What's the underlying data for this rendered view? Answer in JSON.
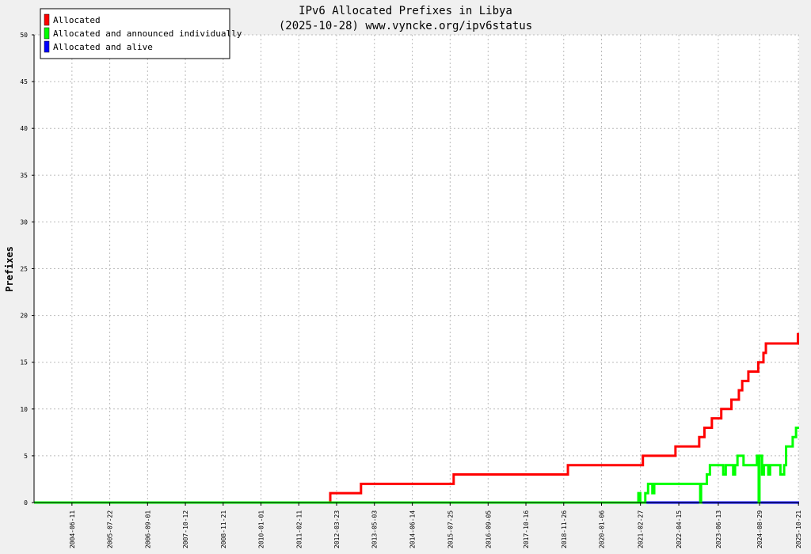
{
  "chart_data": {
    "type": "line",
    "title": "IPv6 Allocated Prefixes in Libya",
    "subtitle": "(2025-10-28) www.vyncke.org/ipv6status",
    "ylabel": "Prefixes",
    "xlabel": "",
    "ylim": [
      0,
      50
    ],
    "yticks": [
      0,
      5,
      10,
      15,
      20,
      25,
      30,
      35,
      40,
      45,
      50
    ],
    "xlim": [
      "2003-05-01",
      "2025-10-28"
    ],
    "xticks": [
      "2004-06-11",
      "2005-07-22",
      "2006-09-01",
      "2007-10-12",
      "2008-11-21",
      "2010-01-01",
      "2011-02-11",
      "2012-03-23",
      "2013-05-03",
      "2014-06-14",
      "2015-07-25",
      "2016-09-05",
      "2017-10-16",
      "2018-11-26",
      "2020-01-06",
      "2021-02-27",
      "2022-04-15",
      "2023-06-13",
      "2024-08-29",
      "2025-10-21"
    ],
    "grid": true,
    "legend_position": "top-left",
    "series": [
      {
        "name": "Allocated",
        "color": "#ff0000",
        "points": [
          [
            "2003-05-01",
            0
          ],
          [
            "2012-01-15",
            0
          ],
          [
            "2012-01-15",
            1
          ],
          [
            "2012-12-10",
            1
          ],
          [
            "2012-12-10",
            2
          ],
          [
            "2015-09-01",
            2
          ],
          [
            "2015-09-01",
            3
          ],
          [
            "2019-01-10",
            3
          ],
          [
            "2019-01-10",
            4
          ],
          [
            "2021-03-25",
            4
          ],
          [
            "2021-03-25",
            5
          ],
          [
            "2022-03-10",
            5
          ],
          [
            "2022-03-10",
            6
          ],
          [
            "2022-11-20",
            6
          ],
          [
            "2022-11-20",
            7
          ],
          [
            "2023-01-15",
            7
          ],
          [
            "2023-01-15",
            8
          ],
          [
            "2023-04-05",
            8
          ],
          [
            "2023-04-05",
            9
          ],
          [
            "2023-07-15",
            9
          ],
          [
            "2023-07-15",
            10
          ],
          [
            "2023-11-01",
            10
          ],
          [
            "2023-11-01",
            11
          ],
          [
            "2024-01-20",
            11
          ],
          [
            "2024-01-20",
            12
          ],
          [
            "2024-02-25",
            12
          ],
          [
            "2024-02-25",
            13
          ],
          [
            "2024-05-01",
            13
          ],
          [
            "2024-05-01",
            14
          ],
          [
            "2024-08-15",
            14
          ],
          [
            "2024-08-15",
            15
          ],
          [
            "2024-10-10",
            15
          ],
          [
            "2024-10-10",
            16
          ],
          [
            "2024-11-05",
            16
          ],
          [
            "2024-11-05",
            17
          ],
          [
            "2025-10-15",
            17
          ],
          [
            "2025-10-15",
            18
          ],
          [
            "2025-10-28",
            18
          ]
        ]
      },
      {
        "name": "Allocated and announced individually",
        "color": "#00ff00",
        "points": [
          [
            "2003-05-01",
            0
          ],
          [
            "2021-02-05",
            0
          ],
          [
            "2021-02-05",
            1
          ],
          [
            "2021-02-25",
            1
          ],
          [
            "2021-02-25",
            0
          ],
          [
            "2021-04-20",
            0
          ],
          [
            "2021-04-20",
            1
          ],
          [
            "2021-05-20",
            1
          ],
          [
            "2021-05-20",
            2
          ],
          [
            "2021-07-05",
            2
          ],
          [
            "2021-07-05",
            1
          ],
          [
            "2021-07-25",
            1
          ],
          [
            "2021-07-25",
            2
          ],
          [
            "2022-12-01",
            2
          ],
          [
            "2022-12-01",
            0
          ],
          [
            "2022-12-10",
            0
          ],
          [
            "2022-12-10",
            2
          ],
          [
            "2023-02-10",
            2
          ],
          [
            "2023-02-10",
            3
          ],
          [
            "2023-03-15",
            3
          ],
          [
            "2023-03-15",
            4
          ],
          [
            "2023-08-05",
            4
          ],
          [
            "2023-08-05",
            3
          ],
          [
            "2023-09-01",
            3
          ],
          [
            "2023-09-01",
            4
          ],
          [
            "2023-11-20",
            4
          ],
          [
            "2023-11-20",
            3
          ],
          [
            "2023-12-10",
            3
          ],
          [
            "2023-12-10",
            4
          ],
          [
            "2024-01-05",
            4
          ],
          [
            "2024-01-05",
            5
          ],
          [
            "2024-03-10",
            5
          ],
          [
            "2024-03-10",
            4
          ],
          [
            "2024-08-01",
            4
          ],
          [
            "2024-08-01",
            5
          ],
          [
            "2024-08-20",
            5
          ],
          [
            "2024-08-20",
            0
          ],
          [
            "2024-08-28",
            0
          ],
          [
            "2024-08-28",
            5
          ],
          [
            "2024-09-25",
            5
          ],
          [
            "2024-09-25",
            3
          ],
          [
            "2024-10-15",
            3
          ],
          [
            "2024-10-15",
            4
          ],
          [
            "2024-12-01",
            4
          ],
          [
            "2024-12-01",
            3
          ],
          [
            "2024-12-20",
            3
          ],
          [
            "2024-12-20",
            4
          ],
          [
            "2025-04-10",
            4
          ],
          [
            "2025-04-10",
            3
          ],
          [
            "2025-05-20",
            3
          ],
          [
            "2025-05-20",
            4
          ],
          [
            "2025-06-10",
            4
          ],
          [
            "2025-06-10",
            6
          ],
          [
            "2025-08-20",
            6
          ],
          [
            "2025-08-20",
            7
          ],
          [
            "2025-09-25",
            7
          ],
          [
            "2025-09-25",
            8
          ],
          [
            "2025-10-28",
            8
          ]
        ]
      },
      {
        "name": "Allocated and alive",
        "color": "#0000ff",
        "points": [
          [
            "2003-05-01",
            0
          ],
          [
            "2025-10-28",
            0
          ]
        ]
      }
    ]
  }
}
